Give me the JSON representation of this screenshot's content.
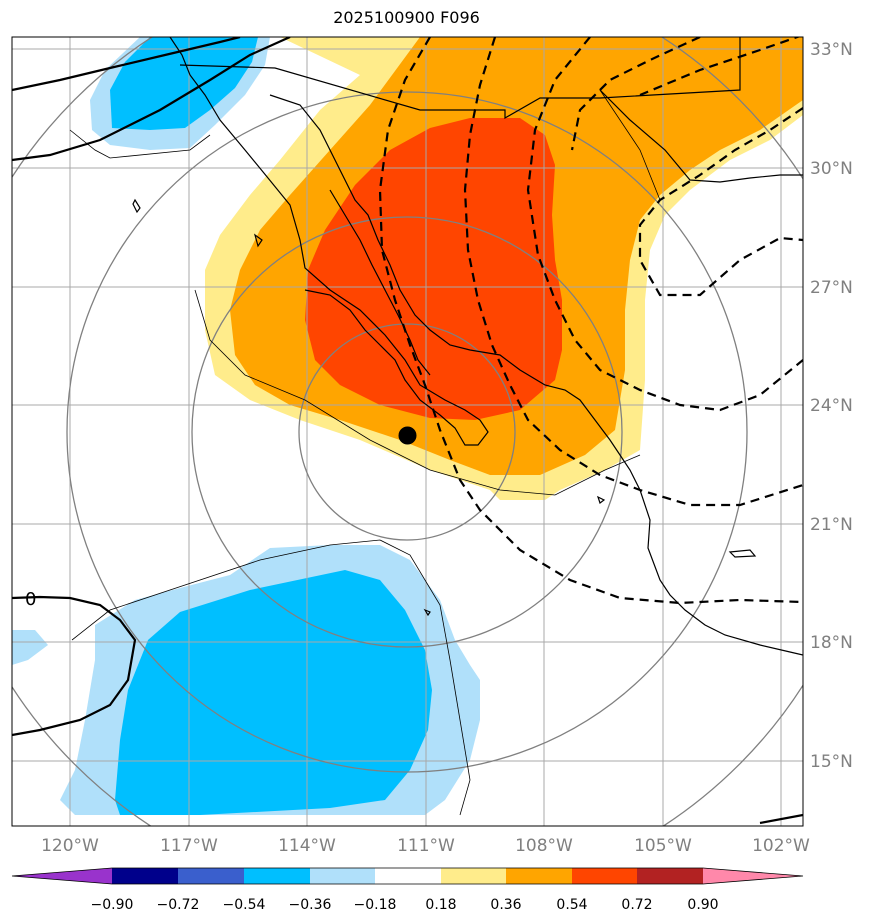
{
  "title": "2025100900 F096",
  "colors": {
    "c_m090": "#9933cc",
    "c_m072": "#00008b",
    "c_m054": "#3a5fcd",
    "c_m036": "#00bfff",
    "c_m018": "#b0e0fa",
    "c_0": "#ffffff",
    "c_p018": "#ffec8b",
    "c_p036": "#ffa500",
    "c_p054": "#ff4500",
    "c_p072": "#b22222",
    "c_p090": "#ff88aa",
    "grid": "#a8a8a8",
    "range_ring": "#808080"
  },
  "axes": {
    "lon_labels": [
      "120°W",
      "117°W",
      "114°W",
      "111°W",
      "108°W",
      "105°W",
      "102°W"
    ],
    "lat_labels": [
      "33°N",
      "30°N",
      "27°N",
      "24°N",
      "21°N",
      "18°N",
      "15°N"
    ],
    "lon_range": [
      -121.5,
      -101.5
    ],
    "lat_range": [
      13.5,
      33.3
    ]
  },
  "colorbar": {
    "ticks": [
      "−0.90",
      "−0.72",
      "−0.54",
      "−0.36",
      "−0.18",
      "0.18",
      "0.36",
      "0.54",
      "0.72",
      "0.90"
    ]
  },
  "contour_label": "0",
  "storm_center": {
    "lon": -111.5,
    "lat": 23.3
  }
}
